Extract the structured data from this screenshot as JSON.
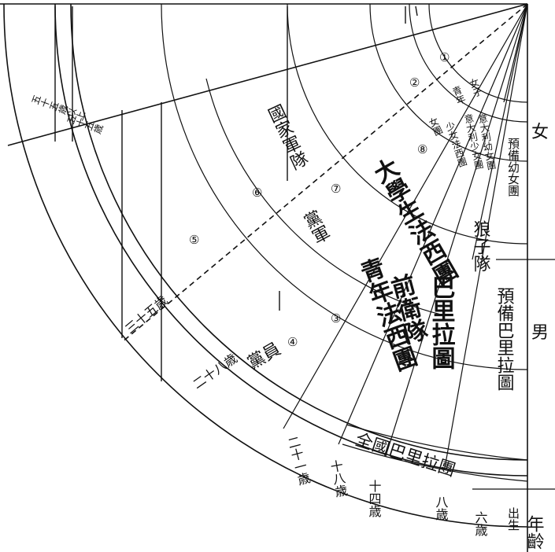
{
  "side_labels": {
    "female": "女",
    "male": "男",
    "age": "年齡",
    "birth": "出生"
  },
  "ages": [
    "六歳",
    "八歳",
    "十四歳",
    "十八歳",
    "二十一歳",
    "二十八歳",
    "三十五歳",
    "五十五歳",
    "五十五歳以上"
  ],
  "groups": {
    "all_paris": "全國巴里拉團",
    "prep_balilla": "預備巴里拉圖",
    "cub": "狼子隊",
    "balilla": "巴里拉圖",
    "avanguardisti": "前衛隊",
    "young_fascists": "青年法西團",
    "university": "大學生法西團",
    "party_members": "黨員",
    "militia": "國家軍隊",
    "party_army": "黨軍",
    "prep_girls": "預備幼女團",
    "italian_girls": "意大利幼女團",
    "italian_young_women": "意大利少女團",
    "young_women_fascists": "少女法西團",
    "women_fascist": "女團",
    "women_label": "女子",
    "youth_label": "青年"
  },
  "circled_numbers": [
    "①",
    "②",
    "③",
    "④",
    "⑤",
    "⑥",
    "⑦",
    "⑧"
  ]
}
